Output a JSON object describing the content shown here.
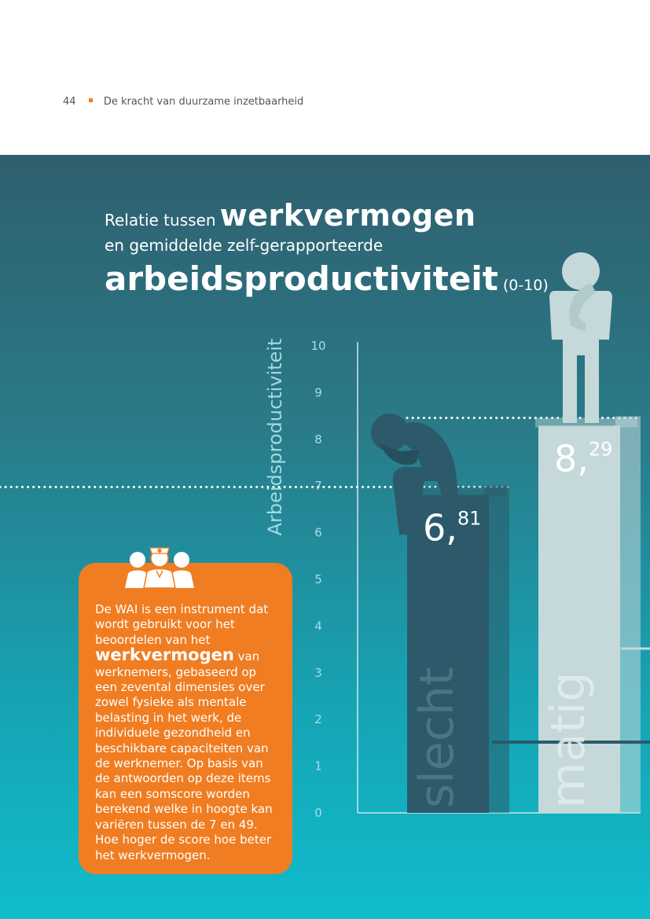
{
  "header": {
    "page_number": "44",
    "running_title": "De kracht van duurzame inzetbaarheid"
  },
  "title": {
    "part1_small": "Relatie tussen",
    "part1_big": "werkvermogen",
    "part2": "en gemiddelde zelf-gerapporteerde",
    "part3_big": "arbeidsproductiviteit",
    "unit": "(0-10)"
  },
  "info_box": {
    "text_before": "De WAI is een instrument dat wordt gebruikt voor het beoordelen van het",
    "highlight": "werkvermogen",
    "text_after": "van werknemers, gebaseerd op een zevental dimensies over zowel fysieke als mentale belasting in het werk, de individuele gezondheid en beschikbare capaciteiten van de werknemer. Op basis van de antwoorden op deze items kan een somscore worden berekend welke in hoogte kan variëren tussen de 7 en 49. Hoe hoger de score hoe beter het werkvermogen.",
    "icon": "nurses-icon"
  },
  "chart_data": {
    "type": "bar",
    "ylabel": "Arbeidsproductiviteit",
    "ylim": [
      0,
      10
    ],
    "yticks": [
      "0",
      "1",
      "2",
      "3",
      "4",
      "5",
      "6",
      "7",
      "8",
      "9",
      "10"
    ],
    "categories": [
      "slecht",
      "matig"
    ],
    "values": [
      6.81,
      8.29
    ],
    "value_labels": [
      {
        "int": "6,",
        "dec": "81"
      },
      {
        "int": "8,",
        "dec": "29"
      }
    ],
    "colors": [
      "#2c5a6a",
      "#c5d9da"
    ],
    "icons": [
      "despairing-person-icon",
      "thinking-person-icon"
    ]
  }
}
